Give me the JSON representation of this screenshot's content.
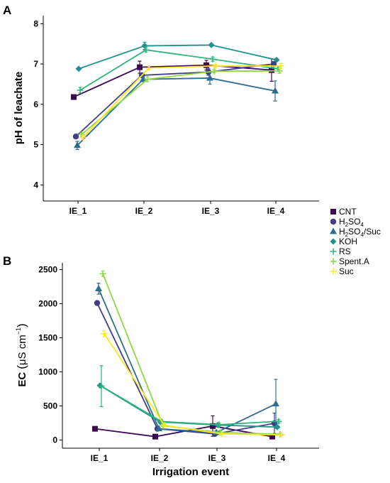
{
  "chart_data": [
    {
      "type": "line",
      "panel_label": "A",
      "title": "",
      "xlabel": "",
      "ylabel": "pH of leachate",
      "categories": [
        "IE_1",
        "IE_2",
        "IE_3",
        "IE_4"
      ],
      "ylim": [
        3.6,
        8.2
      ],
      "yticks": [
        4,
        5,
        6,
        7,
        8
      ],
      "grid": false,
      "series": [
        {
          "name": "CNT",
          "color": "#3b0a52",
          "marker": "square",
          "values": [
            6.18,
            6.92,
            6.97,
            6.85
          ],
          "err": [
            0.03,
            0.15,
            0.12,
            0.28
          ]
        },
        {
          "name": "H2SO4",
          "color": "#433d87",
          "marker": "circle",
          "values": [
            5.2,
            6.72,
            6.8,
            7.0
          ],
          "err": [
            0.04,
            0.04,
            0.08,
            0.05
          ]
        },
        {
          "name": "H2SO4/Suc",
          "color": "#2f6d8f",
          "marker": "triangle",
          "values": [
            4.98,
            6.62,
            6.65,
            6.33
          ],
          "err": [
            0.1,
            0.06,
            0.15,
            0.25
          ]
        },
        {
          "name": "KOH",
          "color": "#21918c",
          "marker": "diamond",
          "values": [
            6.88,
            7.45,
            7.47,
            7.1
          ],
          "err": [
            0.02,
            0.09,
            0.03,
            0.03
          ]
        },
        {
          "name": "RS",
          "color": "#2fb47c",
          "marker": "plus",
          "values": [
            6.35,
            7.35,
            7.12,
            6.88
          ],
          "err": [
            0.07,
            0.05,
            0.05,
            0.05
          ]
        },
        {
          "name": "Spent.A",
          "color": "#8fd744",
          "marker": "plus",
          "values": [
            5.25,
            6.62,
            6.82,
            6.83
          ],
          "err": [
            0.04,
            0.06,
            0.04,
            0.06
          ]
        },
        {
          "name": "Suc",
          "color": "#fde725",
          "marker": "plus",
          "values": [
            5.18,
            6.9,
            6.95,
            6.95
          ],
          "err": [
            0.04,
            0.04,
            0.03,
            0.06
          ]
        }
      ]
    },
    {
      "type": "line",
      "panel_label": "B",
      "title": "",
      "xlabel": "Irrigation event",
      "ylabel": "EC (μS cm⁻¹)",
      "categories": [
        "IE_1",
        "IE_2",
        "IE_3",
        "IE_4"
      ],
      "ylim": [
        -120,
        2600
      ],
      "yticks": [
        0,
        500,
        1000,
        1500,
        2000,
        2500
      ],
      "grid": false,
      "series": [
        {
          "name": "CNT",
          "color": "#3b0a52",
          "marker": "square",
          "values": [
            165,
            50,
            205,
            50
          ],
          "err": [
            8,
            8,
            150,
            12
          ]
        },
        {
          "name": "H2SO4",
          "color": "#433d87",
          "marker": "circle",
          "values": [
            2010,
            165,
            90,
            245
          ],
          "err": [
            12,
            12,
            20,
            150
          ]
        },
        {
          "name": "H2SO4/Suc",
          "color": "#2f6d8f",
          "marker": "triangle",
          "values": [
            2220,
            165,
            110,
            530
          ],
          "err": [
            80,
            15,
            20,
            360
          ]
        },
        {
          "name": "KOH",
          "color": "#21918c",
          "marker": "diamond",
          "values": [
            800,
            265,
            220,
            190
          ],
          "err": [
            10,
            20,
            15,
            10
          ]
        },
        {
          "name": "RS",
          "color": "#2fb47c",
          "marker": "plus",
          "values": [
            790,
            270,
            225,
            275
          ],
          "err": [
            300,
            20,
            20,
            25
          ]
        },
        {
          "name": "Spent.A",
          "color": "#8fd744",
          "marker": "plus",
          "values": [
            2440,
            210,
            110,
            85
          ],
          "err": [
            40,
            15,
            12,
            10
          ]
        },
        {
          "name": "Suc",
          "color": "#fde725",
          "marker": "plus",
          "values": [
            1560,
            215,
            90,
            75
          ],
          "err": [
            40,
            15,
            10,
            10
          ]
        }
      ]
    }
  ],
  "legend": {
    "placement": "right",
    "items": [
      {
        "label": "CNT",
        "sub": "",
        "suffix": "",
        "marker": "square",
        "color": "#3b0a52"
      },
      {
        "label": "H",
        "sub": "2",
        "suffix": "SO",
        "sub2": "4",
        "tail": "",
        "marker": "circle",
        "color": "#433d87"
      },
      {
        "label": "H",
        "sub": "2",
        "suffix": "SO",
        "sub2": "4",
        "tail": "/Suc",
        "marker": "triangle",
        "color": "#2f6d8f"
      },
      {
        "label": "KOH",
        "sub": "",
        "suffix": "",
        "marker": "diamond",
        "color": "#21918c"
      },
      {
        "label": "RS",
        "sub": "",
        "suffix": "",
        "marker": "plus",
        "color": "#2fb47c"
      },
      {
        "label": "Spent.A",
        "sub": "",
        "suffix": "",
        "marker": "plus",
        "color": "#8fd744"
      },
      {
        "label": "Suc",
        "sub": "",
        "suffix": "",
        "marker": "plus",
        "color": "#fde725"
      }
    ]
  },
  "text": {
    "panel_a": "A",
    "panel_b": "B",
    "ylabel_a": "pH of leachate",
    "ylabel_b_main": "EC",
    "ylabel_b_open": "(",
    "ylabel_b_unit": "μS cm",
    "ylabel_b_exp": "−1",
    "ylabel_b_close": ")",
    "xlabel_b": "Irrigation event"
  }
}
